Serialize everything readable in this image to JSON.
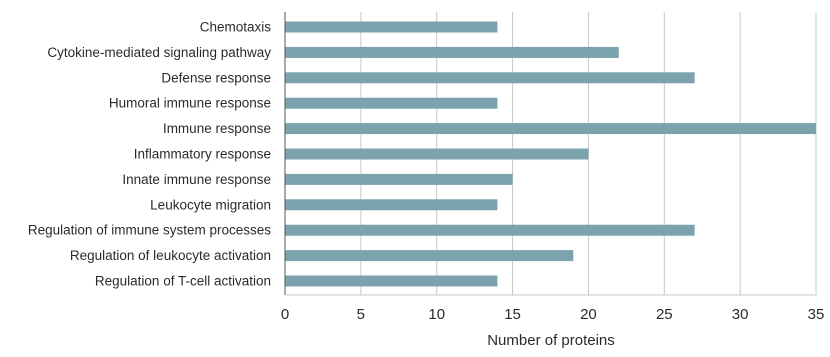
{
  "chart_data": {
    "type": "bar",
    "orientation": "horizontal",
    "categories": [
      "Chemotaxis",
      "Cytokine-mediated signaling pathway",
      "Defense response",
      "Humoral immune response",
      "Immune response",
      "Inflammatory response",
      "Innate immune response",
      "Leukocyte migration",
      "Regulation of immune system processes",
      "Regulation of leukocyte activation",
      "Regulation of T-cell activation"
    ],
    "values": [
      14,
      22,
      27,
      14,
      35,
      20,
      15,
      14,
      27,
      19,
      14
    ],
    "xlabel": "Number of proteins",
    "ylabel": "",
    "title": "",
    "xlim": [
      0,
      35
    ],
    "xticks": [
      0,
      5,
      10,
      15,
      20,
      25,
      30,
      35
    ],
    "grid": "vertical",
    "legend": "none",
    "bar_color": "#7ba3ad",
    "grid_color": "#c8c8c8",
    "axis_color": "#555555"
  }
}
